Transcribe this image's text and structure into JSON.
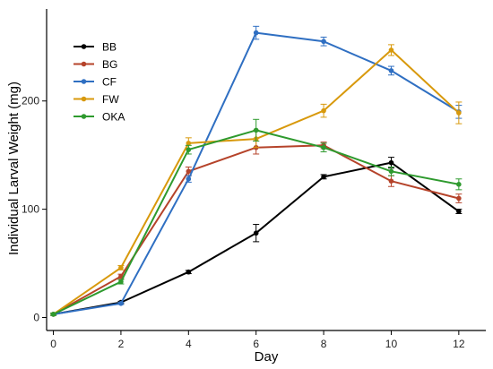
{
  "chart_data": {
    "type": "line",
    "title": "",
    "xlabel": "Day",
    "ylabel": "Individual Larval Weight (mg)",
    "xlim": [
      -0.2,
      12.8
    ],
    "ylim": [
      -12,
      285
    ],
    "x": [
      0,
      2,
      4,
      6,
      8,
      10,
      12
    ],
    "x_ticks": [
      0,
      2,
      4,
      6,
      8,
      10,
      12
    ],
    "x_tick_labels": [
      "0",
      "2",
      "4",
      "6",
      "8",
      "10",
      "12"
    ],
    "y_ticks": [
      0,
      100,
      200
    ],
    "y_tick_labels": [
      "0",
      "100",
      "200"
    ],
    "grid": false,
    "legend_position": "top-left",
    "series": [
      {
        "name": "BB",
        "color": "#000000",
        "values": [
          3,
          14,
          42,
          78,
          130,
          143,
          98
        ],
        "errors": [
          1,
          1,
          1.5,
          8,
          2,
          5,
          2
        ]
      },
      {
        "name": "BG",
        "color": "#b5432a",
        "values": [
          3,
          38,
          135,
          157,
          159,
          126,
          110
        ],
        "errors": [
          1,
          2,
          4,
          6,
          3,
          5,
          4
        ]
      },
      {
        "name": "CF",
        "color": "#2f6fc2",
        "values": [
          3,
          13,
          128,
          263,
          255,
          228,
          190
        ],
        "errors": [
          1,
          1,
          3,
          6,
          4,
          4,
          6
        ]
      },
      {
        "name": "FW",
        "color": "#d8990c",
        "values": [
          3,
          46,
          161,
          165,
          191,
          247,
          189
        ],
        "errors": [
          1,
          2,
          5,
          8,
          6,
          5,
          10
        ]
      },
      {
        "name": "OKA",
        "color": "#2e9a2e",
        "values": [
          3,
          33,
          155,
          173,
          157,
          135,
          123
        ],
        "errors": [
          1,
          2,
          4,
          10,
          4,
          4,
          5
        ]
      }
    ]
  }
}
